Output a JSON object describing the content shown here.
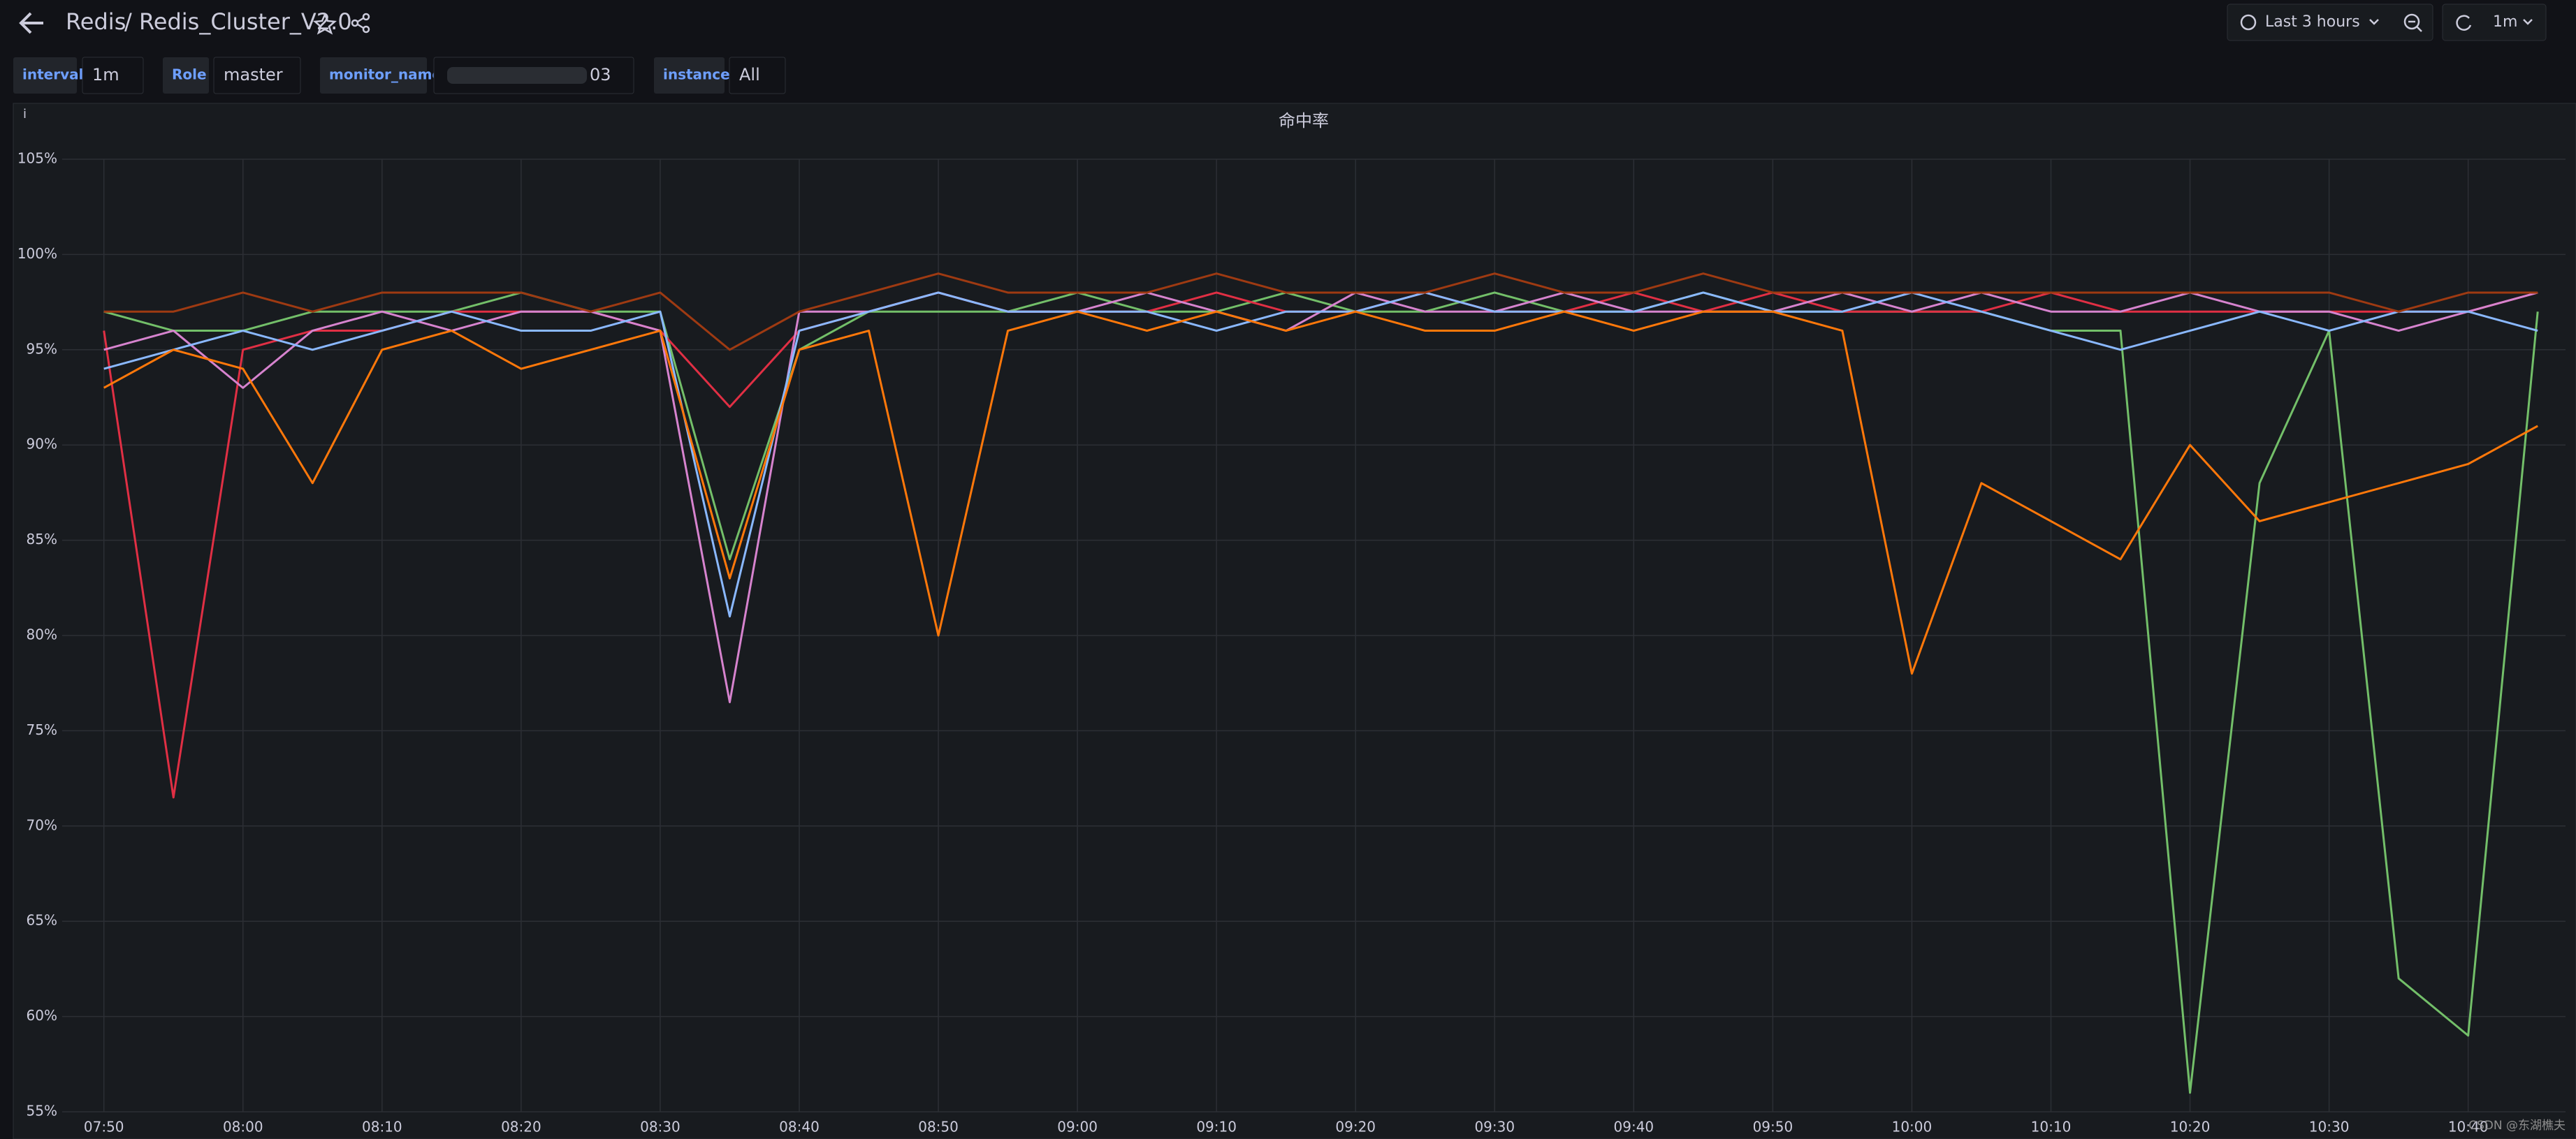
{
  "header": {
    "title": "Redis",
    "dashboard": "/ Redis_Cluster_V2.0",
    "time_range": "Last 3 hours",
    "refresh": "1m"
  },
  "variables": [
    {
      "label": "interval",
      "value": "1m"
    },
    {
      "label": "Role",
      "value": "master"
    },
    {
      "label": "monitor_name",
      "value": "03"
    },
    {
      "label": "instance",
      "value": "All"
    }
  ],
  "watermark": "CSDN @东湖樵夫",
  "chart_data": {
    "type": "line",
    "title": "命中率",
    "x": [
      "07:50",
      "07:55",
      "08:00",
      "08:05",
      "08:10",
      "08:15",
      "08:20",
      "08:25",
      "08:30",
      "08:35",
      "08:40",
      "08:45",
      "08:50",
      "08:55",
      "09:00",
      "09:05",
      "09:10",
      "09:15",
      "09:20",
      "09:25",
      "09:30",
      "09:35",
      "09:40",
      "09:45",
      "09:50",
      "09:55",
      "10:00",
      "10:05",
      "10:10",
      "10:15",
      "10:20",
      "10:25",
      "10:30",
      "10:35",
      "10:40",
      "10:45"
    ],
    "xlim": [
      "07:47",
      "10:47"
    ],
    "xticks": [
      "07:50",
      "08:00",
      "08:10",
      "08:20",
      "08:30",
      "08:40",
      "08:50",
      "09:00",
      "09:10",
      "09:20",
      "09:30",
      "09:40",
      "09:50",
      "10:00",
      "10:10",
      "10:20",
      "10:30",
      "10:40"
    ],
    "ylim": [
      55,
      105
    ],
    "yticks": [
      {
        "value": 55,
        "label": "55%"
      },
      {
        "value": 60,
        "label": "60%"
      },
      {
        "value": 65,
        "label": "65%"
      },
      {
        "value": 70,
        "label": "70%"
      },
      {
        "value": 75,
        "label": "75%"
      },
      {
        "value": 80,
        "label": "80%"
      },
      {
        "value": 85,
        "label": "85%"
      },
      {
        "value": 90,
        "label": "90%"
      },
      {
        "value": 95,
        "label": "95%"
      },
      {
        "value": 100,
        "label": "100%"
      },
      {
        "value": 105,
        "label": "105%"
      }
    ],
    "grid": true,
    "series": [
      {
        "color": "#73bf69",
        "values": [
          97,
          96,
          96,
          97,
          97,
          97,
          98,
          97,
          97,
          84,
          95,
          97,
          97,
          97,
          98,
          97,
          97,
          98,
          97,
          97,
          98,
          97,
          97,
          98,
          97,
          97,
          97,
          97,
          96,
          96,
          56,
          88,
          96,
          62,
          59,
          97
        ]
      },
      {
        "color": "#e02f44",
        "values": [
          96,
          71.5,
          95,
          96,
          96,
          97,
          97,
          97,
          96,
          92,
          96,
          97,
          98,
          97,
          97,
          97,
          98,
          97,
          97,
          98,
          97,
          97,
          98,
          97,
          98,
          97,
          97,
          97,
          98,
          97,
          97,
          97,
          97,
          97,
          97,
          98
        ]
      },
      {
        "color": "#d683ce",
        "values": [
          95,
          96,
          93,
          96,
          97,
          96,
          97,
          97,
          96,
          76.5,
          97,
          97,
          98,
          97,
          97,
          98,
          97,
          96,
          98,
          97,
          97,
          98,
          97,
          97,
          97,
          98,
          97,
          98,
          97,
          97,
          98,
          97,
          97,
          96,
          97,
          98
        ]
      },
      {
        "color": "#8ab8ff",
        "values": [
          94,
          95,
          96,
          95,
          96,
          97,
          96,
          96,
          97,
          81,
          96,
          97,
          98,
          97,
          97,
          97,
          96,
          97,
          97,
          98,
          97,
          97,
          97,
          98,
          97,
          97,
          98,
          97,
          96,
          95,
          96,
          97,
          96,
          97,
          97,
          96
        ]
      },
      {
        "color": "#ff780a",
        "values": [
          93,
          95,
          94,
          88,
          95,
          96,
          94,
          95,
          96,
          83,
          95,
          96,
          80,
          96,
          97,
          96,
          97,
          96,
          97,
          96,
          96,
          97,
          96,
          97,
          97,
          96,
          78,
          88,
          86,
          84,
          90,
          86,
          87,
          88,
          89,
          91
        ]
      },
      {
        "color": "#9e3a12",
        "values": [
          97,
          97,
          98,
          97,
          98,
          98,
          98,
          97,
          98,
          95,
          97,
          98,
          99,
          98,
          98,
          98,
          99,
          98,
          98,
          98,
          99,
          98,
          98,
          99,
          98,
          98,
          98,
          98,
          98,
          98,
          98,
          98,
          98,
          97,
          98,
          98
        ]
      }
    ]
  }
}
